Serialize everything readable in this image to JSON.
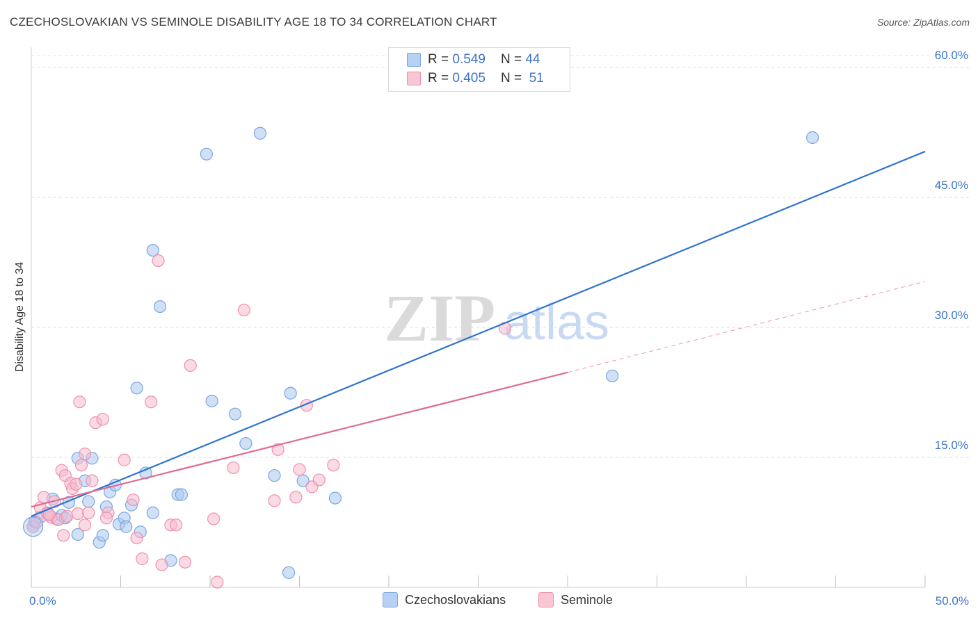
{
  "header": {
    "title": "CZECHOSLOVAKIAN VS SEMINOLE DISABILITY AGE 18 TO 34 CORRELATION CHART",
    "source": "Source: ZipAtlas.com"
  },
  "watermark": {
    "zip": "ZIP",
    "atlas": "atlas"
  },
  "legend": {
    "r_label": "R =",
    "n_label": "N =",
    "rows": [
      {
        "r": "0.549",
        "n": "44",
        "color": "#a9c7f0"
      },
      {
        "r": "0.405",
        "n": "51",
        "color": "#f7b8ca"
      }
    ]
  },
  "colors": {
    "blue_fill": "#aac8f0",
    "blue_stroke": "#7aa6e0",
    "blue_line": "#2f74d0",
    "pink_fill": "#f7bccd",
    "pink_stroke": "#ee90ad",
    "pink_line": "#e06a93",
    "tick_text": "#3b73c7"
  },
  "chart_data": {
    "type": "scatter",
    "title": "CZECHOSLOVAKIAN VS SEMINOLE DISABILITY AGE 18 TO 34 CORRELATION CHART",
    "xlabel": "",
    "ylabel": "Disability Age 18 to 34",
    "xlim": [
      0,
      50
    ],
    "ylim": [
      0,
      60
    ],
    "x_tick_labels": [
      "0.0%",
      "50.0%"
    ],
    "y_ticks": [
      15,
      30,
      45,
      60
    ],
    "y_tick_labels": [
      "15.0%",
      "30.0%",
      "45.0%",
      "60.0%"
    ],
    "grid": true,
    "series": [
      {
        "name": "Czechoslovakians",
        "points": [
          [
            0.1,
            7.0
          ],
          [
            0.2,
            7.6
          ],
          [
            0.5,
            8.1
          ],
          [
            0.9,
            8.6
          ],
          [
            1.2,
            10.2
          ],
          [
            1.4,
            7.9
          ],
          [
            1.7,
            8.3
          ],
          [
            1.9,
            8.0
          ],
          [
            2.1,
            9.8
          ],
          [
            2.6,
            14.9
          ],
          [
            2.6,
            6.1
          ],
          [
            3.0,
            12.3
          ],
          [
            3.2,
            9.9
          ],
          [
            3.4,
            14.9
          ],
          [
            3.8,
            5.2
          ],
          [
            4.0,
            6.0
          ],
          [
            4.2,
            9.3
          ],
          [
            4.4,
            11.0
          ],
          [
            4.7,
            11.8
          ],
          [
            4.9,
            7.3
          ],
          [
            5.2,
            8.0
          ],
          [
            5.3,
            7.0
          ],
          [
            5.6,
            9.5
          ],
          [
            5.9,
            23.0
          ],
          [
            6.1,
            6.4
          ],
          [
            6.4,
            13.2
          ],
          [
            6.8,
            8.6
          ],
          [
            6.8,
            38.9
          ],
          [
            7.2,
            32.4
          ],
          [
            7.8,
            3.1
          ],
          [
            8.2,
            10.7
          ],
          [
            8.4,
            10.7
          ],
          [
            9.8,
            50.0
          ],
          [
            10.1,
            21.5
          ],
          [
            11.4,
            20.0
          ],
          [
            12.0,
            16.6
          ],
          [
            12.8,
            52.4
          ],
          [
            13.6,
            12.9
          ],
          [
            14.4,
            1.7
          ],
          [
            14.5,
            22.4
          ],
          [
            15.2,
            12.3
          ],
          [
            17.0,
            10.3
          ],
          [
            32.5,
            24.4
          ],
          [
            43.7,
            51.9
          ]
        ],
        "trend": {
          "x": [
            0,
            50
          ],
          "y": [
            8.2,
            50.3
          ]
        }
      },
      {
        "name": "Seminole",
        "points": [
          [
            0.1,
            7.0
          ],
          [
            0.3,
            7.5
          ],
          [
            0.5,
            9.2
          ],
          [
            0.7,
            10.4
          ],
          [
            0.9,
            8.5
          ],
          [
            1.1,
            8.1
          ],
          [
            1.3,
            9.9
          ],
          [
            1.5,
            7.8
          ],
          [
            1.7,
            13.5
          ],
          [
            1.8,
            6.0
          ],
          [
            1.9,
            12.9
          ],
          [
            2.0,
            8.2
          ],
          [
            2.2,
            12.0
          ],
          [
            2.3,
            11.4
          ],
          [
            2.5,
            11.9
          ],
          [
            2.6,
            8.5
          ],
          [
            2.7,
            21.4
          ],
          [
            2.8,
            14.1
          ],
          [
            3.0,
            7.2
          ],
          [
            3.0,
            15.4
          ],
          [
            3.2,
            8.6
          ],
          [
            3.4,
            12.3
          ],
          [
            3.6,
            19.0
          ],
          [
            4.0,
            19.4
          ],
          [
            4.3,
            8.6
          ],
          [
            5.2,
            14.7
          ],
          [
            5.7,
            10.1
          ],
          [
            5.9,
            5.7
          ],
          [
            6.2,
            3.3
          ],
          [
            6.7,
            21.4
          ],
          [
            7.1,
            37.7
          ],
          [
            7.3,
            2.6
          ],
          [
            7.8,
            7.2
          ],
          [
            8.1,
            7.2
          ],
          [
            8.6,
            2.9
          ],
          [
            8.9,
            25.6
          ],
          [
            10.2,
            7.9
          ],
          [
            11.3,
            13.8
          ],
          [
            11.9,
            32.0
          ],
          [
            13.6,
            10.0
          ],
          [
            13.8,
            15.9
          ],
          [
            14.8,
            10.4
          ],
          [
            15.0,
            13.6
          ],
          [
            15.4,
            21.0
          ],
          [
            15.7,
            11.6
          ],
          [
            16.1,
            12.4
          ],
          [
            16.9,
            14.1
          ],
          [
            26.5,
            29.9
          ],
          [
            10.4,
            0.6
          ],
          [
            4.2,
            8.0
          ],
          [
            1.0,
            8.4
          ]
        ],
        "trend": {
          "x": [
            0,
            30
          ],
          "y": [
            9.3,
            24.8
          ]
        },
        "trend_dashed": {
          "x": [
            30,
            50
          ],
          "y": [
            24.8,
            35.3
          ]
        }
      }
    ]
  },
  "bottom_legend": [
    {
      "label": "Czechoslovakians",
      "color": "#b7d1f4"
    },
    {
      "label": "Seminole",
      "color": "#f9c6d4"
    }
  ]
}
